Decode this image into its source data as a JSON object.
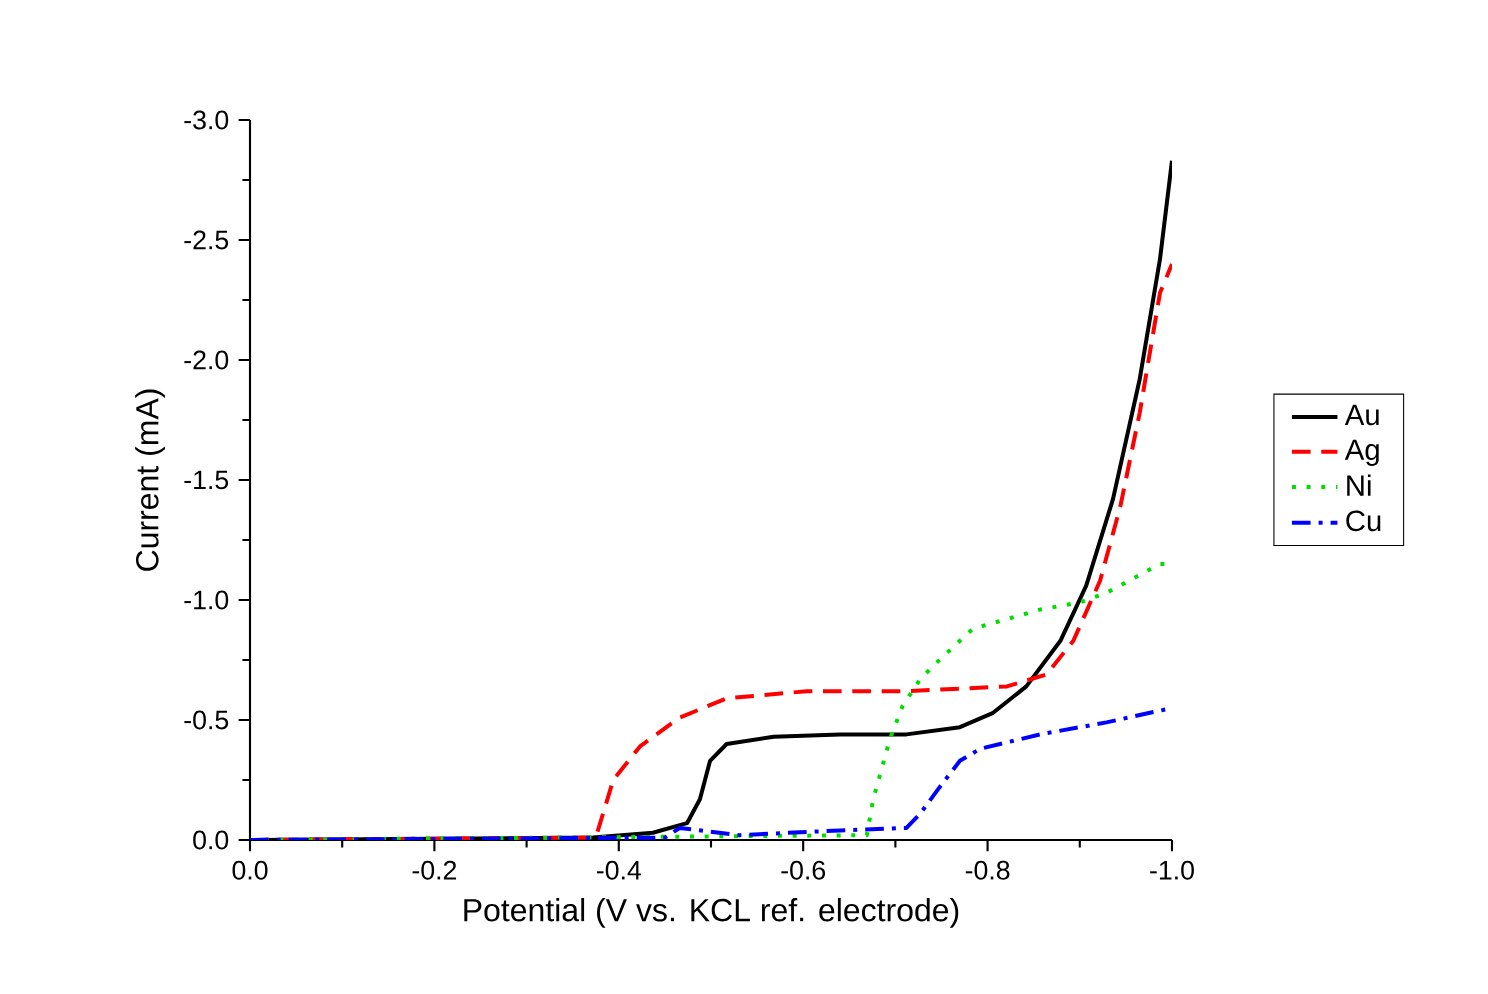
{
  "chart_data": {
    "type": "line",
    "xlabel": "Potential (V vs. KCL ref. electrode)",
    "ylabel": "Current (mA)",
    "xlim": [
      0,
      -1.0
    ],
    "ylim": [
      0,
      -3.0
    ],
    "xticks": [
      {
        "value": 0,
        "label": "0.0"
      },
      {
        "value": -0.2,
        "label": "-0.2"
      },
      {
        "value": -0.4,
        "label": "-0.4"
      },
      {
        "value": -0.6,
        "label": "-0.6"
      },
      {
        "value": -0.8,
        "label": "-0.8"
      },
      {
        "value": -1.0,
        "label": "-1.0"
      }
    ],
    "yticks": [
      {
        "value": 0,
        "label": "0.0"
      },
      {
        "value": -0.5,
        "label": "-0.5"
      },
      {
        "value": -1.0,
        "label": "-1.0"
      },
      {
        "value": -1.5,
        "label": "-1.5"
      },
      {
        "value": -2.0,
        "label": "-2.0"
      },
      {
        "value": -2.5,
        "label": "-2.5"
      },
      {
        "value": -3.0,
        "label": "-3.0"
      }
    ],
    "legend": "right",
    "grid": false,
    "series": [
      {
        "name": "Au",
        "color": "#000000",
        "line_style": "solid",
        "x": [
          0,
          -0.372,
          -0.437,
          -0.474,
          -0.488,
          -0.499,
          -0.517,
          -0.568,
          -0.64,
          -0.712,
          -0.77,
          -0.806,
          -0.842,
          -0.879,
          -0.907,
          -0.936,
          -0.965,
          -0.987,
          -1.0
        ],
        "values": [
          0,
          -0.01,
          -0.03,
          -0.07,
          -0.17,
          -0.33,
          -0.4,
          -0.43,
          -0.44,
          -0.44,
          -0.47,
          -0.53,
          -0.64,
          -0.83,
          -1.06,
          -1.42,
          -1.92,
          -2.42,
          -2.83
        ]
      },
      {
        "name": "Ag",
        "color": "#ff0000",
        "line_style": "dashed",
        "x": [
          0,
          -0.375,
          -0.394,
          -0.423,
          -0.466,
          -0.517,
          -0.604,
          -0.712,
          -0.821,
          -0.864,
          -0.893,
          -0.922,
          -0.944,
          -0.965,
          -0.987,
          -1.0
        ],
        "values": [
          0,
          -0.01,
          -0.25,
          -0.39,
          -0.51,
          -0.59,
          -0.62,
          -0.62,
          -0.64,
          -0.69,
          -0.83,
          -1.08,
          -1.39,
          -1.78,
          -2.28,
          -2.4
        ]
      },
      {
        "name": "Ni",
        "color": "#00dd00",
        "line_style": "dotted",
        "x": [
          0,
          -0.669,
          -0.676,
          -0.694,
          -0.708,
          -0.727,
          -0.745,
          -0.784,
          -0.857,
          -0.9,
          -0.929,
          -0.987,
          -1.0
        ],
        "values": [
          0,
          -0.02,
          -0.17,
          -0.42,
          -0.56,
          -0.67,
          -0.74,
          -0.88,
          -0.96,
          -0.99,
          -1.03,
          -1.15,
          -1.15
        ]
      },
      {
        "name": "Cu",
        "color": "#0000ff",
        "line_style": "dashdot",
        "x": [
          0,
          -0.45,
          -0.466,
          -0.531,
          -0.64,
          -0.712,
          -0.727,
          -0.748,
          -0.77,
          -0.792,
          -0.857,
          -0.929,
          -1.0
        ],
        "values": [
          0,
          -0.01,
          -0.05,
          -0.02,
          -0.04,
          -0.05,
          -0.11,
          -0.22,
          -0.33,
          -0.38,
          -0.44,
          -0.49,
          -0.55
        ]
      }
    ]
  }
}
